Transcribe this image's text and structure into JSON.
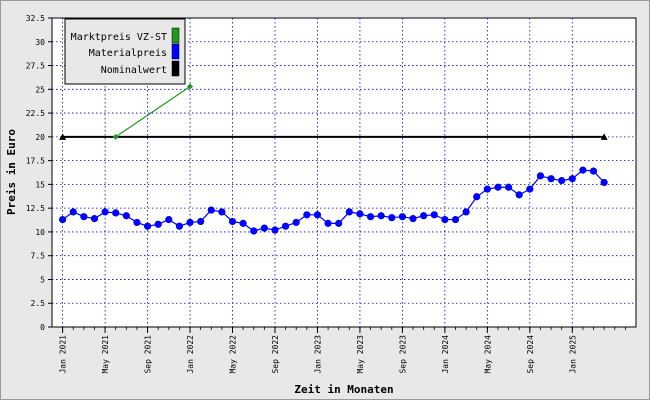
{
  "colors": {
    "background": "#e8e8e8",
    "plot_background": "#ffffff",
    "grid": "#0000c8",
    "marktpreis": "#1e9a1e",
    "materialpreis": "#0000ff",
    "nominalwert": "#000000"
  },
  "chart_data": {
    "type": "line",
    "title": "",
    "xlabel": "Zeit in Monaten",
    "ylabel": "Preis in Euro",
    "ylim": [
      0,
      32.5
    ],
    "yticks": [
      "0",
      "2.5",
      "5",
      "7.5",
      "10",
      "12.5",
      "15",
      "17.5",
      "20",
      "22.5",
      "25",
      "27.5",
      "30",
      "32.5"
    ],
    "xlim": [
      "2020-12",
      "2025-07"
    ],
    "xticks": [
      "Jan 2021",
      "May 2021",
      "Sep 2021",
      "Jan 2022",
      "May 2022",
      "Sep 2022",
      "Jan 2023",
      "May 2023",
      "Sep 2023",
      "Jan 2024",
      "May 2024",
      "Sep 2024",
      "Jan 2025"
    ],
    "grid": true,
    "legend_position": "top-left",
    "series": [
      {
        "name": "Marktpreis VZ-ST",
        "color": "#1e9a1e",
        "marker": "diamond",
        "x": [
          "2021-06",
          "2022-01"
        ],
        "values": [
          20,
          25.3
        ]
      },
      {
        "name": "Materialpreis",
        "color": "#0000ff",
        "marker": "circle",
        "x": [
          "2021-01",
          "2021-02",
          "2021-03",
          "2021-04",
          "2021-05",
          "2021-06",
          "2021-07",
          "2021-08",
          "2021-09",
          "2021-10",
          "2021-11",
          "2021-12",
          "2022-01",
          "2022-02",
          "2022-03",
          "2022-04",
          "2022-05",
          "2022-06",
          "2022-07",
          "2022-08",
          "2022-09",
          "2022-10",
          "2022-11",
          "2022-12",
          "2023-01",
          "2023-02",
          "2023-03",
          "2023-04",
          "2023-05",
          "2023-06",
          "2023-07",
          "2023-08",
          "2023-09",
          "2023-10",
          "2023-11",
          "2023-12",
          "2024-01",
          "2024-02",
          "2024-03",
          "2024-04",
          "2024-05",
          "2024-06",
          "2024-07",
          "2024-08",
          "2024-09",
          "2024-10",
          "2024-11",
          "2024-12",
          "2025-01",
          "2025-02",
          "2025-03",
          "2025-04"
        ],
        "values": [
          11.3,
          12.1,
          11.6,
          11.4,
          12.1,
          12.0,
          11.7,
          11.0,
          10.6,
          10.8,
          11.3,
          10.6,
          11.0,
          11.1,
          12.3,
          12.1,
          11.1,
          10.9,
          10.1,
          10.4,
          10.2,
          10.6,
          11.0,
          11.8,
          11.8,
          10.9,
          10.9,
          12.1,
          11.9,
          11.6,
          11.7,
          11.5,
          11.6,
          11.4,
          11.7,
          11.8,
          11.3,
          11.3,
          12.1,
          13.7,
          14.5,
          14.7,
          14.7,
          13.9,
          14.5,
          15.9,
          15.6,
          15.4,
          15.6,
          16.5,
          16.4,
          15.2
        ]
      },
      {
        "name": "Nominalwert",
        "color": "#000000",
        "marker": "triangle",
        "x": [
          "2021-01",
          "2025-04"
        ],
        "values": [
          20,
          20
        ]
      }
    ]
  }
}
